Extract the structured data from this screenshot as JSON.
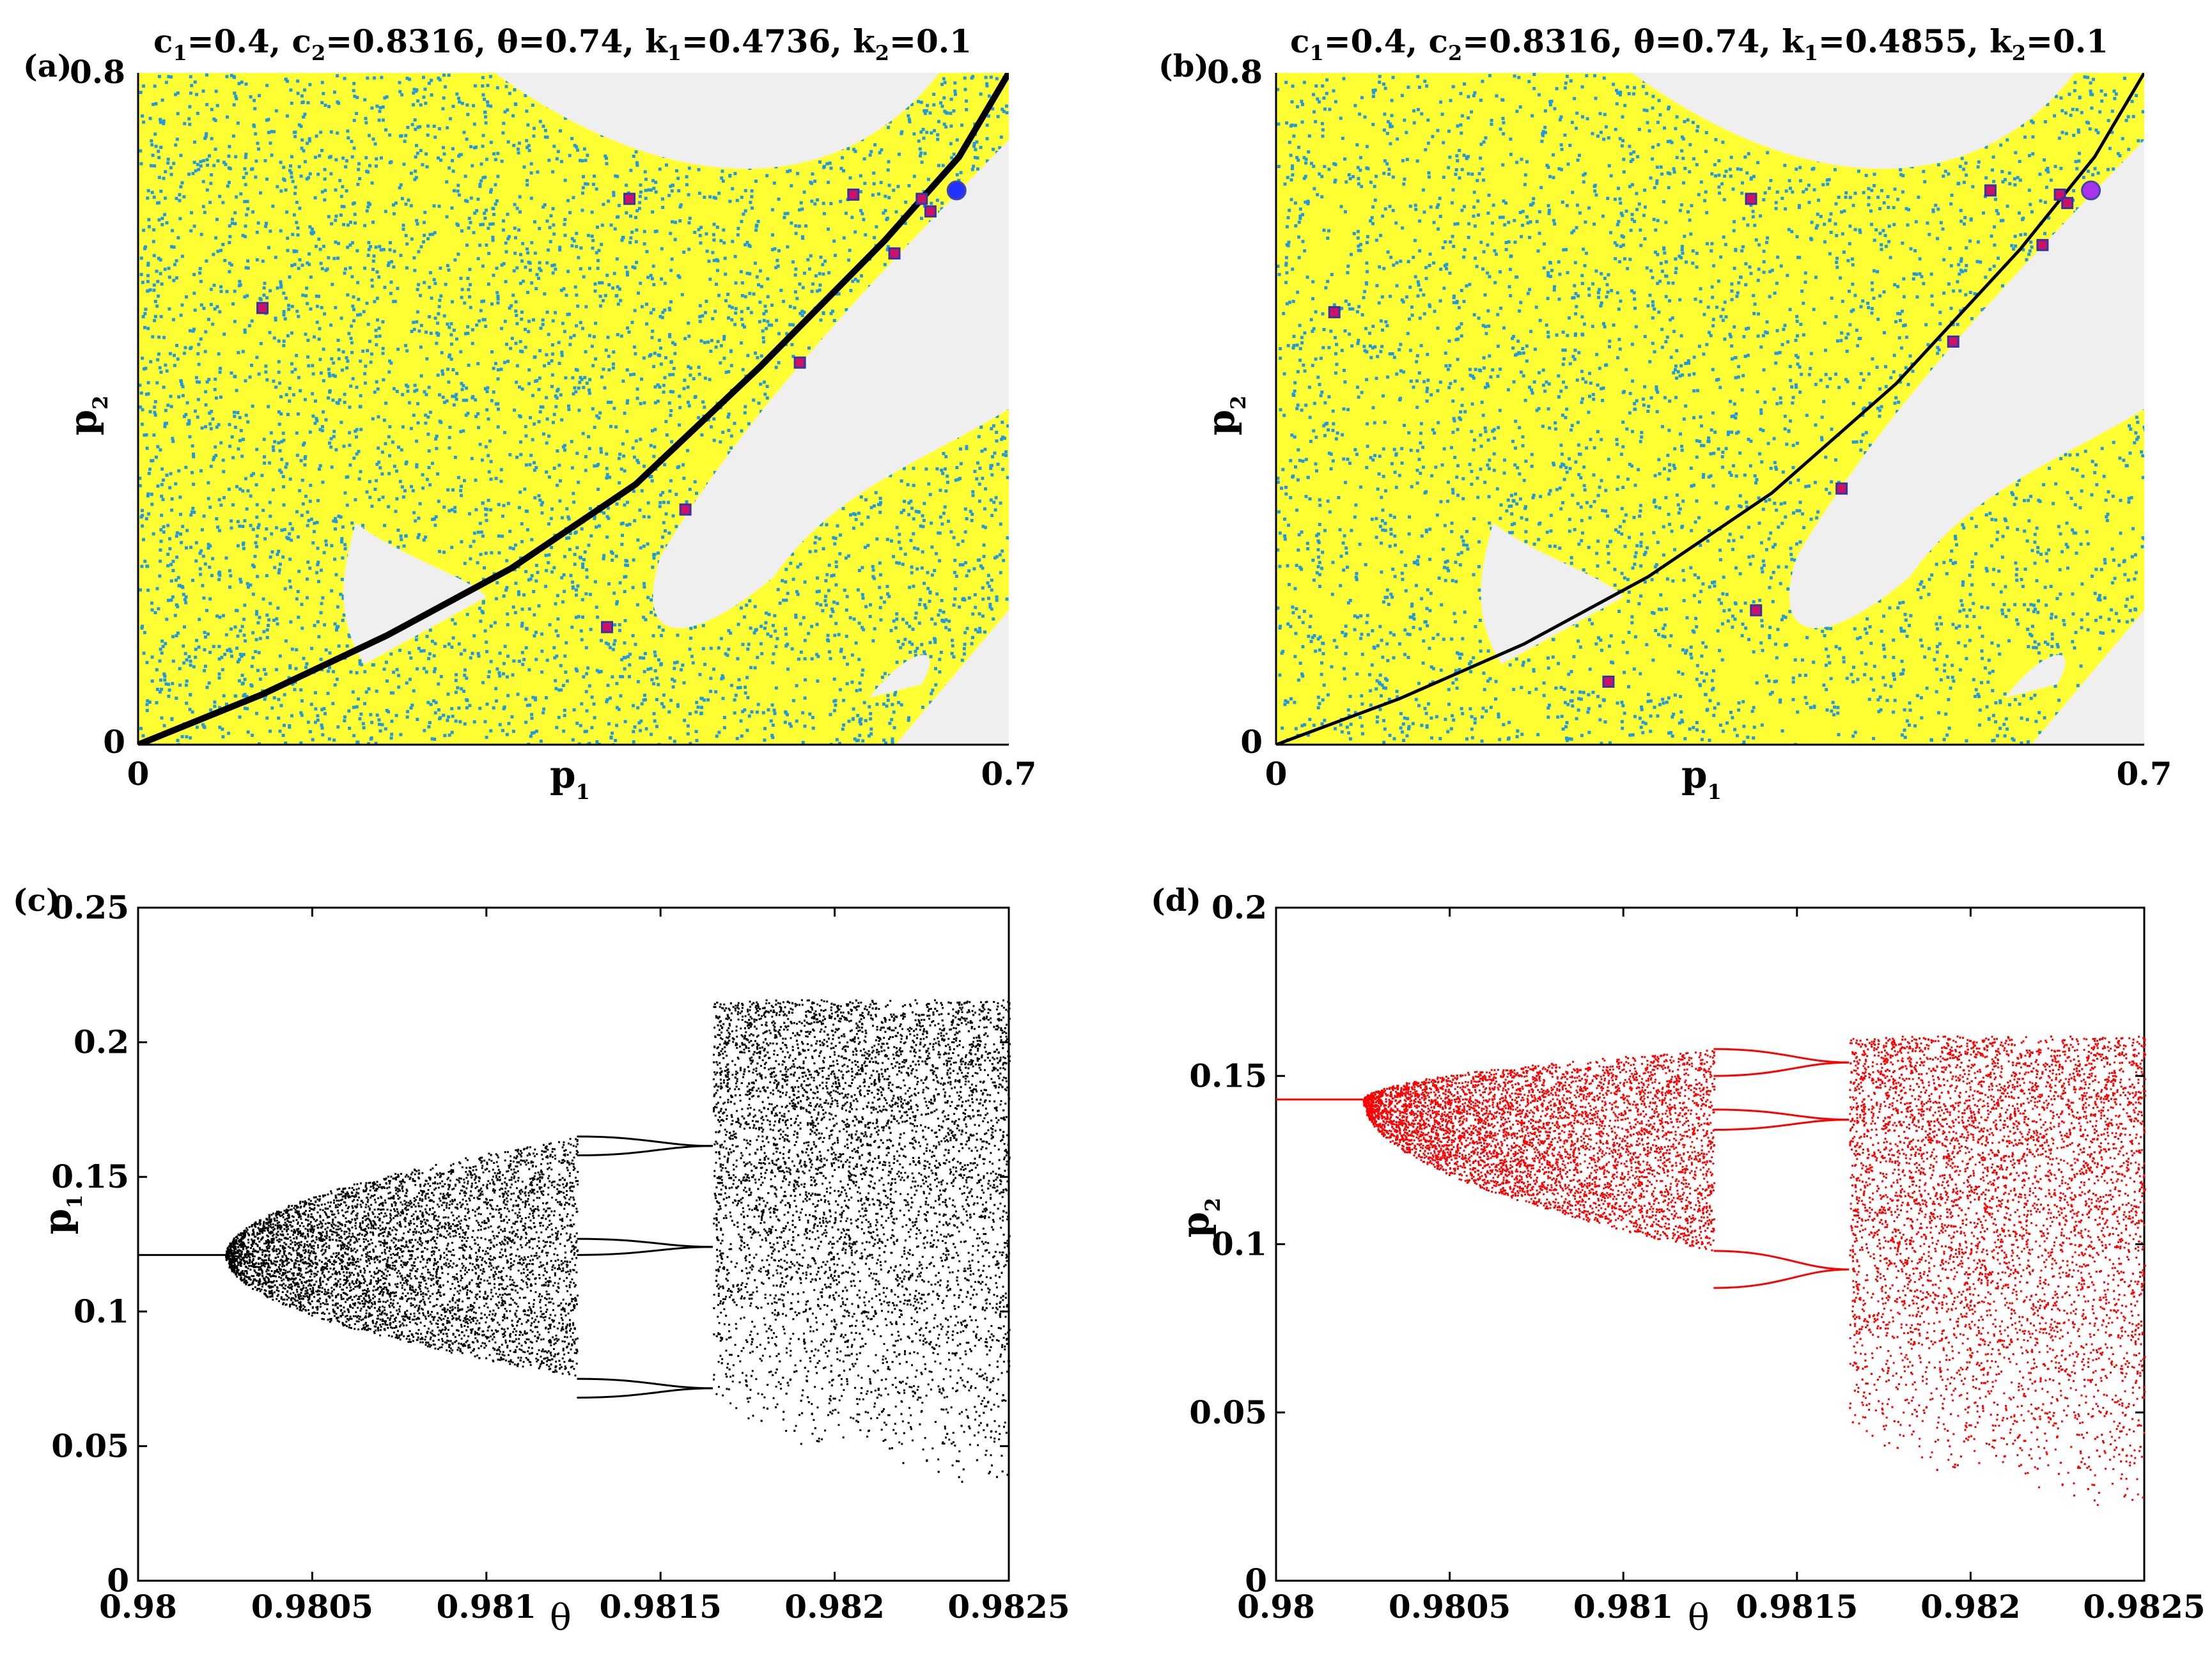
{
  "chart_data": [
    {
      "id": "a",
      "type": "scatter",
      "panel_label": "(a)",
      "title_parts": {
        "c1": "0.4",
        "c2": "0.8316",
        "theta": "0.74",
        "k1": "0.4736",
        "k2": "0.1"
      },
      "xlabel": "p",
      "xlabel_sub": "1",
      "ylabel": "p",
      "ylabel_sub": "2",
      "xlim": [
        0,
        0.7
      ],
      "ylim": [
        0,
        0.8
      ],
      "xticks": [
        "0",
        "0.7"
      ],
      "yticks": [
        "0",
        "0.8"
      ],
      "colors": {
        "basin": "#ffff33",
        "dots": "#2299dd",
        "escape": "#efefef",
        "curve": "#000000",
        "orbit": "#cc1166",
        "fixed_point": "#2233ff"
      },
      "curve_points": [
        [
          0,
          0
        ],
        [
          0.1,
          0.06
        ],
        [
          0.2,
          0.13
        ],
        [
          0.3,
          0.21
        ],
        [
          0.4,
          0.31
        ],
        [
          0.5,
          0.45
        ],
        [
          0.6,
          0.6
        ],
        [
          0.66,
          0.7
        ],
        [
          0.7,
          0.8
        ]
      ],
      "period_points": [
        [
          0.1,
          0.52
        ],
        [
          0.395,
          0.65
        ],
        [
          0.575,
          0.655
        ],
        [
          0.63,
          0.65
        ],
        [
          0.637,
          0.635
        ],
        [
          0.608,
          0.585
        ],
        [
          0.532,
          0.455
        ],
        [
          0.44,
          0.28
        ],
        [
          0.377,
          0.14
        ]
      ],
      "fixed_point": [
        0.658,
        0.66
      ],
      "escape_regions": "light grey escape regions: top center, right of curve, lower triangle near (0.2,0.15)"
    },
    {
      "id": "b",
      "type": "scatter",
      "panel_label": "(b)",
      "title_parts": {
        "c1": "0.4",
        "c2": "0.8316",
        "theta": "0.74",
        "k1": "0.4855",
        "k2": "0.1"
      },
      "xlabel": "p",
      "xlabel_sub": "1",
      "ylabel": "p",
      "ylabel_sub": "2",
      "xlim": [
        0,
        0.7
      ],
      "ylim": [
        0,
        0.8
      ],
      "xticks": [
        "0",
        "0.7"
      ],
      "yticks": [
        "0",
        "0.8"
      ],
      "colors": {
        "basin": "#ffff33",
        "dots": "#2299dd",
        "escape": "#efefef",
        "curve": "#000000",
        "orbit": "#cc1166",
        "fixed_point": "#aa33ee"
      },
      "curve_points": [
        [
          0,
          0
        ],
        [
          0.1,
          0.055
        ],
        [
          0.2,
          0.12
        ],
        [
          0.3,
          0.2
        ],
        [
          0.4,
          0.3
        ],
        [
          0.5,
          0.43
        ],
        [
          0.6,
          0.59
        ],
        [
          0.66,
          0.7
        ],
        [
          0.7,
          0.8
        ]
      ],
      "period_points": [
        [
          0.047,
          0.515
        ],
        [
          0.383,
          0.65
        ],
        [
          0.576,
          0.66
        ],
        [
          0.632,
          0.655
        ],
        [
          0.638,
          0.645
        ],
        [
          0.618,
          0.595
        ],
        [
          0.546,
          0.48
        ],
        [
          0.456,
          0.305
        ],
        [
          0.387,
          0.16
        ],
        [
          0.268,
          0.075
        ]
      ],
      "fixed_point": [
        0.657,
        0.66
      ]
    },
    {
      "id": "c",
      "type": "scatter",
      "panel_label": "(c)",
      "xlabel": "θ",
      "ylabel": "p",
      "ylabel_sub": "1",
      "xlim": [
        0.98,
        0.9825
      ],
      "ylim": [
        0,
        0.25
      ],
      "xticks": [
        0.98,
        0.9805,
        0.981,
        0.9815,
        0.982,
        0.9825
      ],
      "yticks": [
        0,
        0.05,
        0.1,
        0.15,
        0.2,
        0.25
      ],
      "xtick_labels": [
        "0.98",
        "0.9805",
        "0.981",
        "0.9815",
        "0.982",
        "0.9825"
      ],
      "ytick_labels": [
        "0",
        "0.05",
        "0.1",
        "0.15",
        "0.2",
        "0.25"
      ],
      "color": "#000000",
      "fixed_value": 0.121,
      "bifurcation_theta": 0.98025,
      "chaotic_band": {
        "theta_start": 0.98025,
        "theta_end": 0.98126,
        "upper_end": 0.165,
        "lower_end": 0.076
      },
      "period_window": {
        "theta_start": 0.98126,
        "theta_end": 0.98165,
        "branches": [
          0.165,
          0.158,
          0.127,
          0.121,
          0.075,
          0.068
        ]
      },
      "final_chaos": {
        "theta_start": 0.98165,
        "theta_end": 0.9825,
        "top": 0.216,
        "bottom_start": 0.059,
        "bottom_end": 0.032
      }
    },
    {
      "id": "d",
      "type": "scatter",
      "panel_label": "(d)",
      "xlabel": "θ",
      "ylabel": "p",
      "ylabel_sub": "2",
      "xlim": [
        0.98,
        0.9825
      ],
      "ylim": [
        0,
        0.2
      ],
      "xticks": [
        0.98,
        0.9805,
        0.981,
        0.9815,
        0.982,
        0.9825
      ],
      "yticks": [
        0,
        0.05,
        0.1,
        0.15,
        0.2
      ],
      "xtick_labels": [
        "0.98",
        "0.9805",
        "0.981",
        "0.9815",
        "0.982",
        "0.9825"
      ],
      "ytick_labels": [
        "0",
        "0.05",
        "0.1",
        "0.15",
        "0.2"
      ],
      "color": "#ff0000",
      "fixed_value": 0.143,
      "bifurcation_theta": 0.98025,
      "chaotic_band": {
        "theta_start": 0.98025,
        "theta_end": 0.98126,
        "upper_end": 0.158,
        "lower_end": 0.098
      },
      "period_window": {
        "theta_start": 0.98126,
        "theta_end": 0.98165,
        "branches": [
          0.158,
          0.15,
          0.14,
          0.134,
          0.098,
          0.087
        ]
      },
      "final_chaos": {
        "theta_start": 0.98165,
        "theta_end": 0.9825,
        "top": 0.162,
        "bottom_start": 0.039,
        "bottom_end": 0.019
      }
    }
  ]
}
